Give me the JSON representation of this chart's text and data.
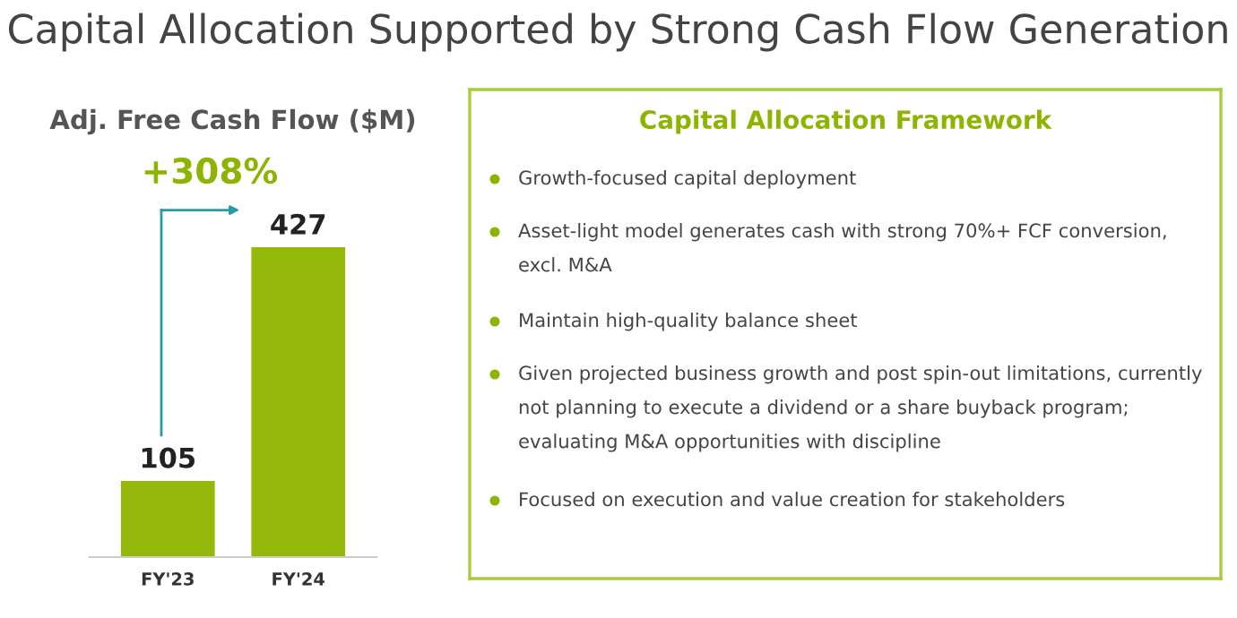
{
  "chart_data": [
    {
      "type": "bar",
      "title": "Adj. Free Cash Flow ($M)",
      "categories": [
        "FY'23",
        "FY'24"
      ],
      "values": [
        105,
        427
      ],
      "color": "#95b90b",
      "data_labels": true,
      "annotations": [
        "Capital Allocation Supported by Strong Cash Flow Generation",
        "+308%"
      ]
    },
    {
      "type": "other",
      "title": "Capital Allocation Framework",
      "annotations": [
        "Growth-focused capital deployment",
        "Asset-light model generates cash with strong 70%+ FCF conversion, excl. M&A",
        "Maintain high-quality balance sheet",
        "Given projected business growth and post spin-out limitations, currently not planning to execute a dividend or a share buyback program; evaluating M&A opportunities with discipline",
        "Focused on execution and value creation for stakeholders"
      ]
    }
  ]
}
